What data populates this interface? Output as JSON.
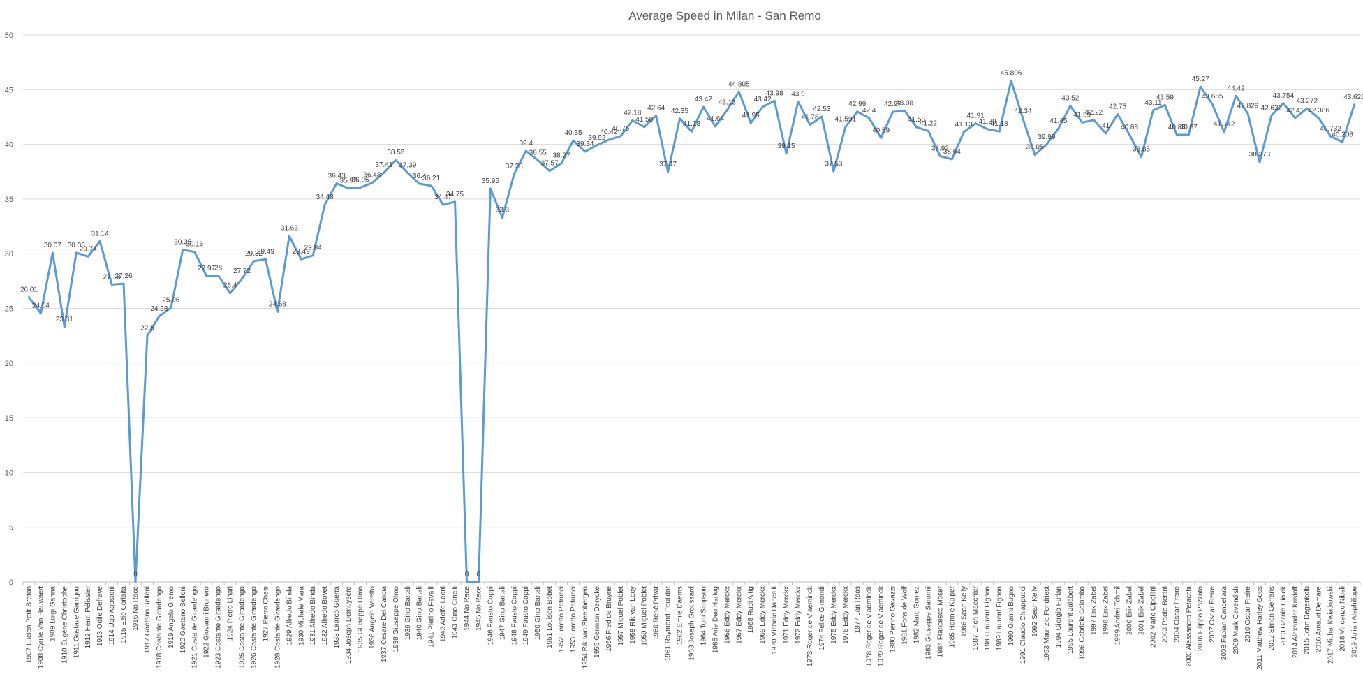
{
  "chart_data": {
    "type": "line",
    "title": "Average Speed in  Milan - San Remo",
    "xlabel": "",
    "ylabel": "",
    "ylim": [
      0,
      50
    ],
    "yticks": [
      0,
      5,
      10,
      15,
      20,
      25,
      30,
      35,
      40,
      45,
      50
    ],
    "grid": true,
    "legend": "none",
    "line_color": "#5b9bd5",
    "categories": [
      "1907 Lucien Petit-Breton",
      "1908 Cyrille Van Hauwaert",
      "1909 Luigi Ganna",
      "1910 Eugène Christophe",
      "1911 Gustave Garrigou",
      "1912 Henri Pélissier",
      "1913 Odile Defraye",
      "1914 Ugo Agostoni",
      "1915 Ezio Corlaita",
      "1916 No Race",
      "1917 Gaetano Belloni",
      "1918 Costante Girardengo",
      "1919 Angelo Gremo",
      "1920 Gaetano Belloni",
      "1921 Costante Girardengo",
      "1922 Giovanni Brunero",
      "1923 Costante Girardengo",
      "1924 Pietro Linari",
      "1925 Costante Girardengo",
      "1926 Costante Girardengo",
      "1927 Pietro Chesi",
      "1928 Costante Girardengo",
      "1929 Alfredo Binda",
      "1930 Michele Mara",
      "1931 Alfredo Binda",
      "1932 Alfredo Bovet",
      "1933 Learco Guerra",
      "1934 Joseph Demuysère",
      "1935 Giuseppe Olmo",
      "1936 Angelo Varetto",
      "1937 Cesare Del Cancia",
      "1938 Giuseppe Olmo",
      "1939 Gino Bartali",
      "1940 Gino Bartali",
      "1941 Pierino Favalli",
      "1942 Adolfo Leoni",
      "1943 Cino Cinelli",
      "1944 No Race",
      "1945 No Race",
      "1946 Fausto Coppi",
      "1947 Gino Bartali",
      "1948 Fausto Coppi",
      "1949 Fausto Coppi",
      "1950 Gino Bartali",
      "1951 Louison Bobet",
      "1952 Loretto Petrucci",
      "1953 Loretto Petrucci",
      "1954 Rik van Steenbergen",
      "1955 Germain Derycke",
      "1956 Fred de Bruyne",
      "1957 Miguel Poblet",
      "1958 Rik van Looy",
      "1959 Miguel Poblet",
      "1960 René Privat",
      "1961 Raymond Poulidor",
      "1962 Emile Daems",
      "1963 Joseph Groussard",
      "1964 Tom Simpson",
      "1965 Arie Den Hartog",
      "1966 Eddy Merckx",
      "1967 Eddy Merckx",
      "1968 Rudi Altig",
      "1969 Eddy Merckx",
      "1970 Michele Dancelli",
      "1971 Eddy Merckx",
      "1972 Eddy Merckx",
      "1973 Roger de Vlaeminck",
      "1974 Felice Gimondi",
      "1975 Eddy Merckx",
      "1976 Eddy Merckx",
      "1977 Jan Raas",
      "1978 Roger de Vlaeminck",
      "1979 Roger de Vlaeminck",
      "1980 Pierino Gavazzi",
      "1981 Fons de Wolf",
      "1982 Marc Gomez",
      "1983 Giuseppe Saronni",
      "1984 Francesco Moser",
      "1985 Hennie Kuiper",
      "1986 Sean Kelly",
      "1987 Erich Maechler",
      "1988 Laurent Fignon",
      "1989 Laurent Fignon",
      "1990 Gianni Bugno",
      "1991 Claudio Chiappucci",
      "1992 Sean Kelly",
      "1993 Maurizio Fondriest",
      "1994 Giorgio Furlan",
      "1995 Laurent Jalabert",
      "1996 Gabriele Colombo",
      "1997 Erik Zabel",
      "1998 Erik Zabel",
      "1999 Andrei Tchmil",
      "2000 Erik Zabel",
      "2001 Erik Zabel",
      "2002 Mario Cipollini",
      "2003 Paolo Bettini",
      "2004 Oscar Freire",
      "2005 Alessandro Petacchi",
      "2006 Filippo Pozzato",
      "2007 Oscar Freire",
      "2008 Fabian Cancellara",
      "2009 Mark Cavendish",
      "2010 Oscar Freire",
      "2011 Matthew Harley Goss",
      "2012 Simon Gerrans",
      "2013 Gerald Ciolek",
      "2014 Alexander Kristoff",
      "2015 John Degenkolb",
      "2016 Arnaud Demare",
      "2017 Michal Kwiatkowski",
      "2018 Vincenzo Nibali",
      "2019 Julian Alaphilippe"
    ],
    "series": [
      {
        "values": [
          26.01,
          24.54,
          30.07,
          23.31,
          30.08,
          29.74,
          31.14,
          27.18,
          27.26,
          0,
          22.5,
          24.28,
          25.06,
          30.35,
          30.16,
          27.97,
          28,
          26.4,
          27.72,
          29.32,
          29.49,
          24.68,
          31.63,
          29.49,
          29.84,
          34.48,
          36.43,
          35.97,
          36.05,
          36.48,
          37.41,
          38.56,
          37.39,
          36.4,
          36.21,
          34.47,
          34.75,
          0,
          0,
          35.95,
          33.3,
          37.28,
          39.4,
          38.55,
          37.57,
          38.27,
          40.35,
          39.34,
          39.92,
          40.42,
          40.75,
          42.18,
          41.58,
          42.64,
          37.47,
          42.35,
          41.18,
          43.42,
          41.64,
          43.13,
          44.805,
          41.95,
          43.42,
          43.98,
          39.15,
          43.9,
          41.78,
          42.53,
          37.53,
          41.591,
          42.99,
          42.4,
          40.59,
          42.97,
          43.08,
          41.58,
          41.22,
          38.92,
          38.64,
          41.13,
          41.91,
          41.39,
          41.18,
          45.806,
          42.34,
          39.05,
          39.99,
          41.45,
          43.52,
          41.99,
          42.22,
          41,
          42.75,
          40.88,
          38.85,
          43.11,
          43.59,
          40.88,
          40.87,
          45.27,
          43.665,
          41.142,
          44.42,
          42.829,
          38.373,
          42.632,
          43.754,
          42.41,
          43.272,
          42.386,
          40.732,
          40.208,
          43.626
        ],
        "labels": [
          "26.01",
          "24.54",
          "30.07",
          "23.31",
          "30.08",
          "29.74",
          "31.14",
          "27.18",
          "27.26",
          "0",
          "22.5",
          "24.28",
          "25.06",
          "30.35",
          "30.16",
          "27.97",
          "28",
          "26.4",
          "27.72",
          "29.32",
          "29.49",
          "24.68",
          "31.63",
          "29.49",
          "29.84",
          "34.48",
          "36.43",
          "35.97",
          "36.05",
          "36.48",
          "37.41",
          "38.56",
          "37.39",
          "36.4",
          "36.21",
          "34.47",
          "34.75",
          "0",
          "0",
          "35.95",
          "33.3",
          "37.28",
          "39.4",
          "38.55",
          "37.57",
          "38.27",
          "40.35",
          "39.34",
          "39.92",
          "40.42",
          "40.75",
          "42.18",
          "41.58",
          "42.64",
          "37.47",
          "42.35",
          "41.18",
          "43.42",
          "41.64",
          "43.13",
          "44.805",
          "41.95",
          "43.42",
          "43.98",
          "39.15",
          "43.9",
          "41.78",
          "42.53",
          "37.53",
          "41.591",
          "42.99",
          "42.4",
          "40.59",
          "42.97",
          "43.08",
          "41.58",
          "41.22",
          "38.92",
          "38.64",
          "41.13",
          "41.91",
          "41.39",
          "41.18",
          "45.806",
          "42.34",
          "39.05",
          "39.99",
          "41.45",
          "43.52",
          "41.99",
          "42.22",
          "41",
          "42.75",
          "40.88",
          "38.85",
          "43.11",
          "43.59",
          "40.88",
          "40.87",
          "45.27",
          "43.665",
          "41.142",
          "44.42",
          "42.829",
          "38.373",
          "42.632",
          "43.754",
          "42.41",
          "43.272",
          "42.386",
          "40.732",
          "40.208",
          "43.626"
        ]
      }
    ]
  }
}
